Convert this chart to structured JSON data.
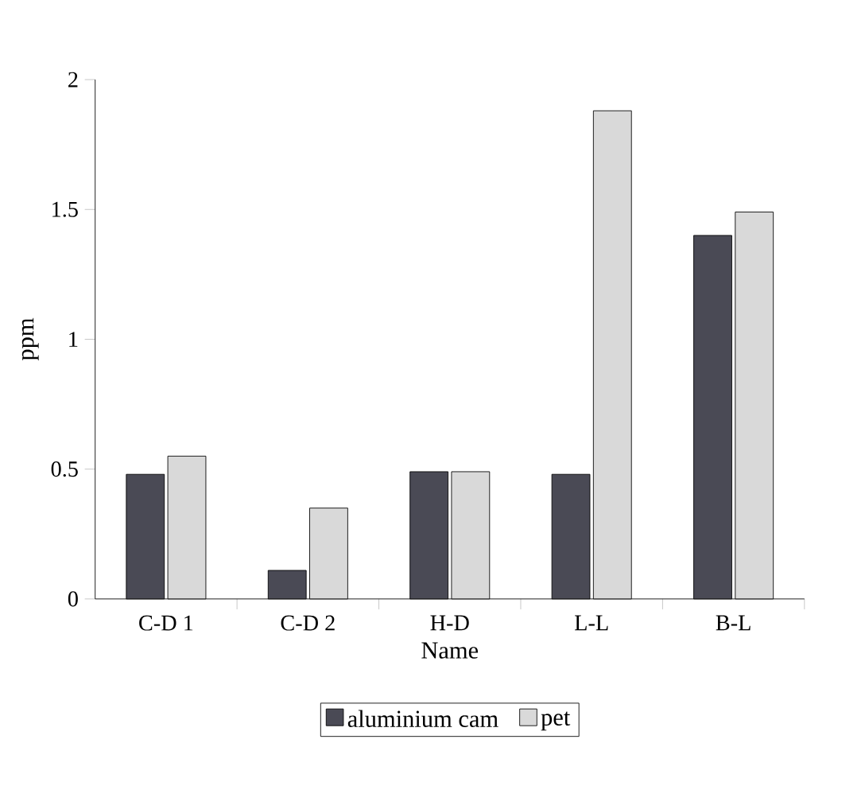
{
  "chart_data": {
    "type": "bar",
    "xlabel": "Name",
    "ylabel": "ppm",
    "categories": [
      "C-D 1",
      "C-D 2",
      "H-D",
      "L-L",
      "B-L"
    ],
    "series": [
      {
        "name": "aluminium cam",
        "color": "#4a4a55",
        "values": [
          0.48,
          0.11,
          0.49,
          0.48,
          1.4
        ]
      },
      {
        "name": "pet",
        "color": "#d9d9d9",
        "values": [
          0.55,
          0.35,
          0.49,
          1.88,
          1.49
        ]
      }
    ],
    "ylim": [
      0,
      2
    ],
    "yticks": [
      0,
      0.5,
      1,
      1.5,
      2
    ],
    "legend": "bottom"
  }
}
